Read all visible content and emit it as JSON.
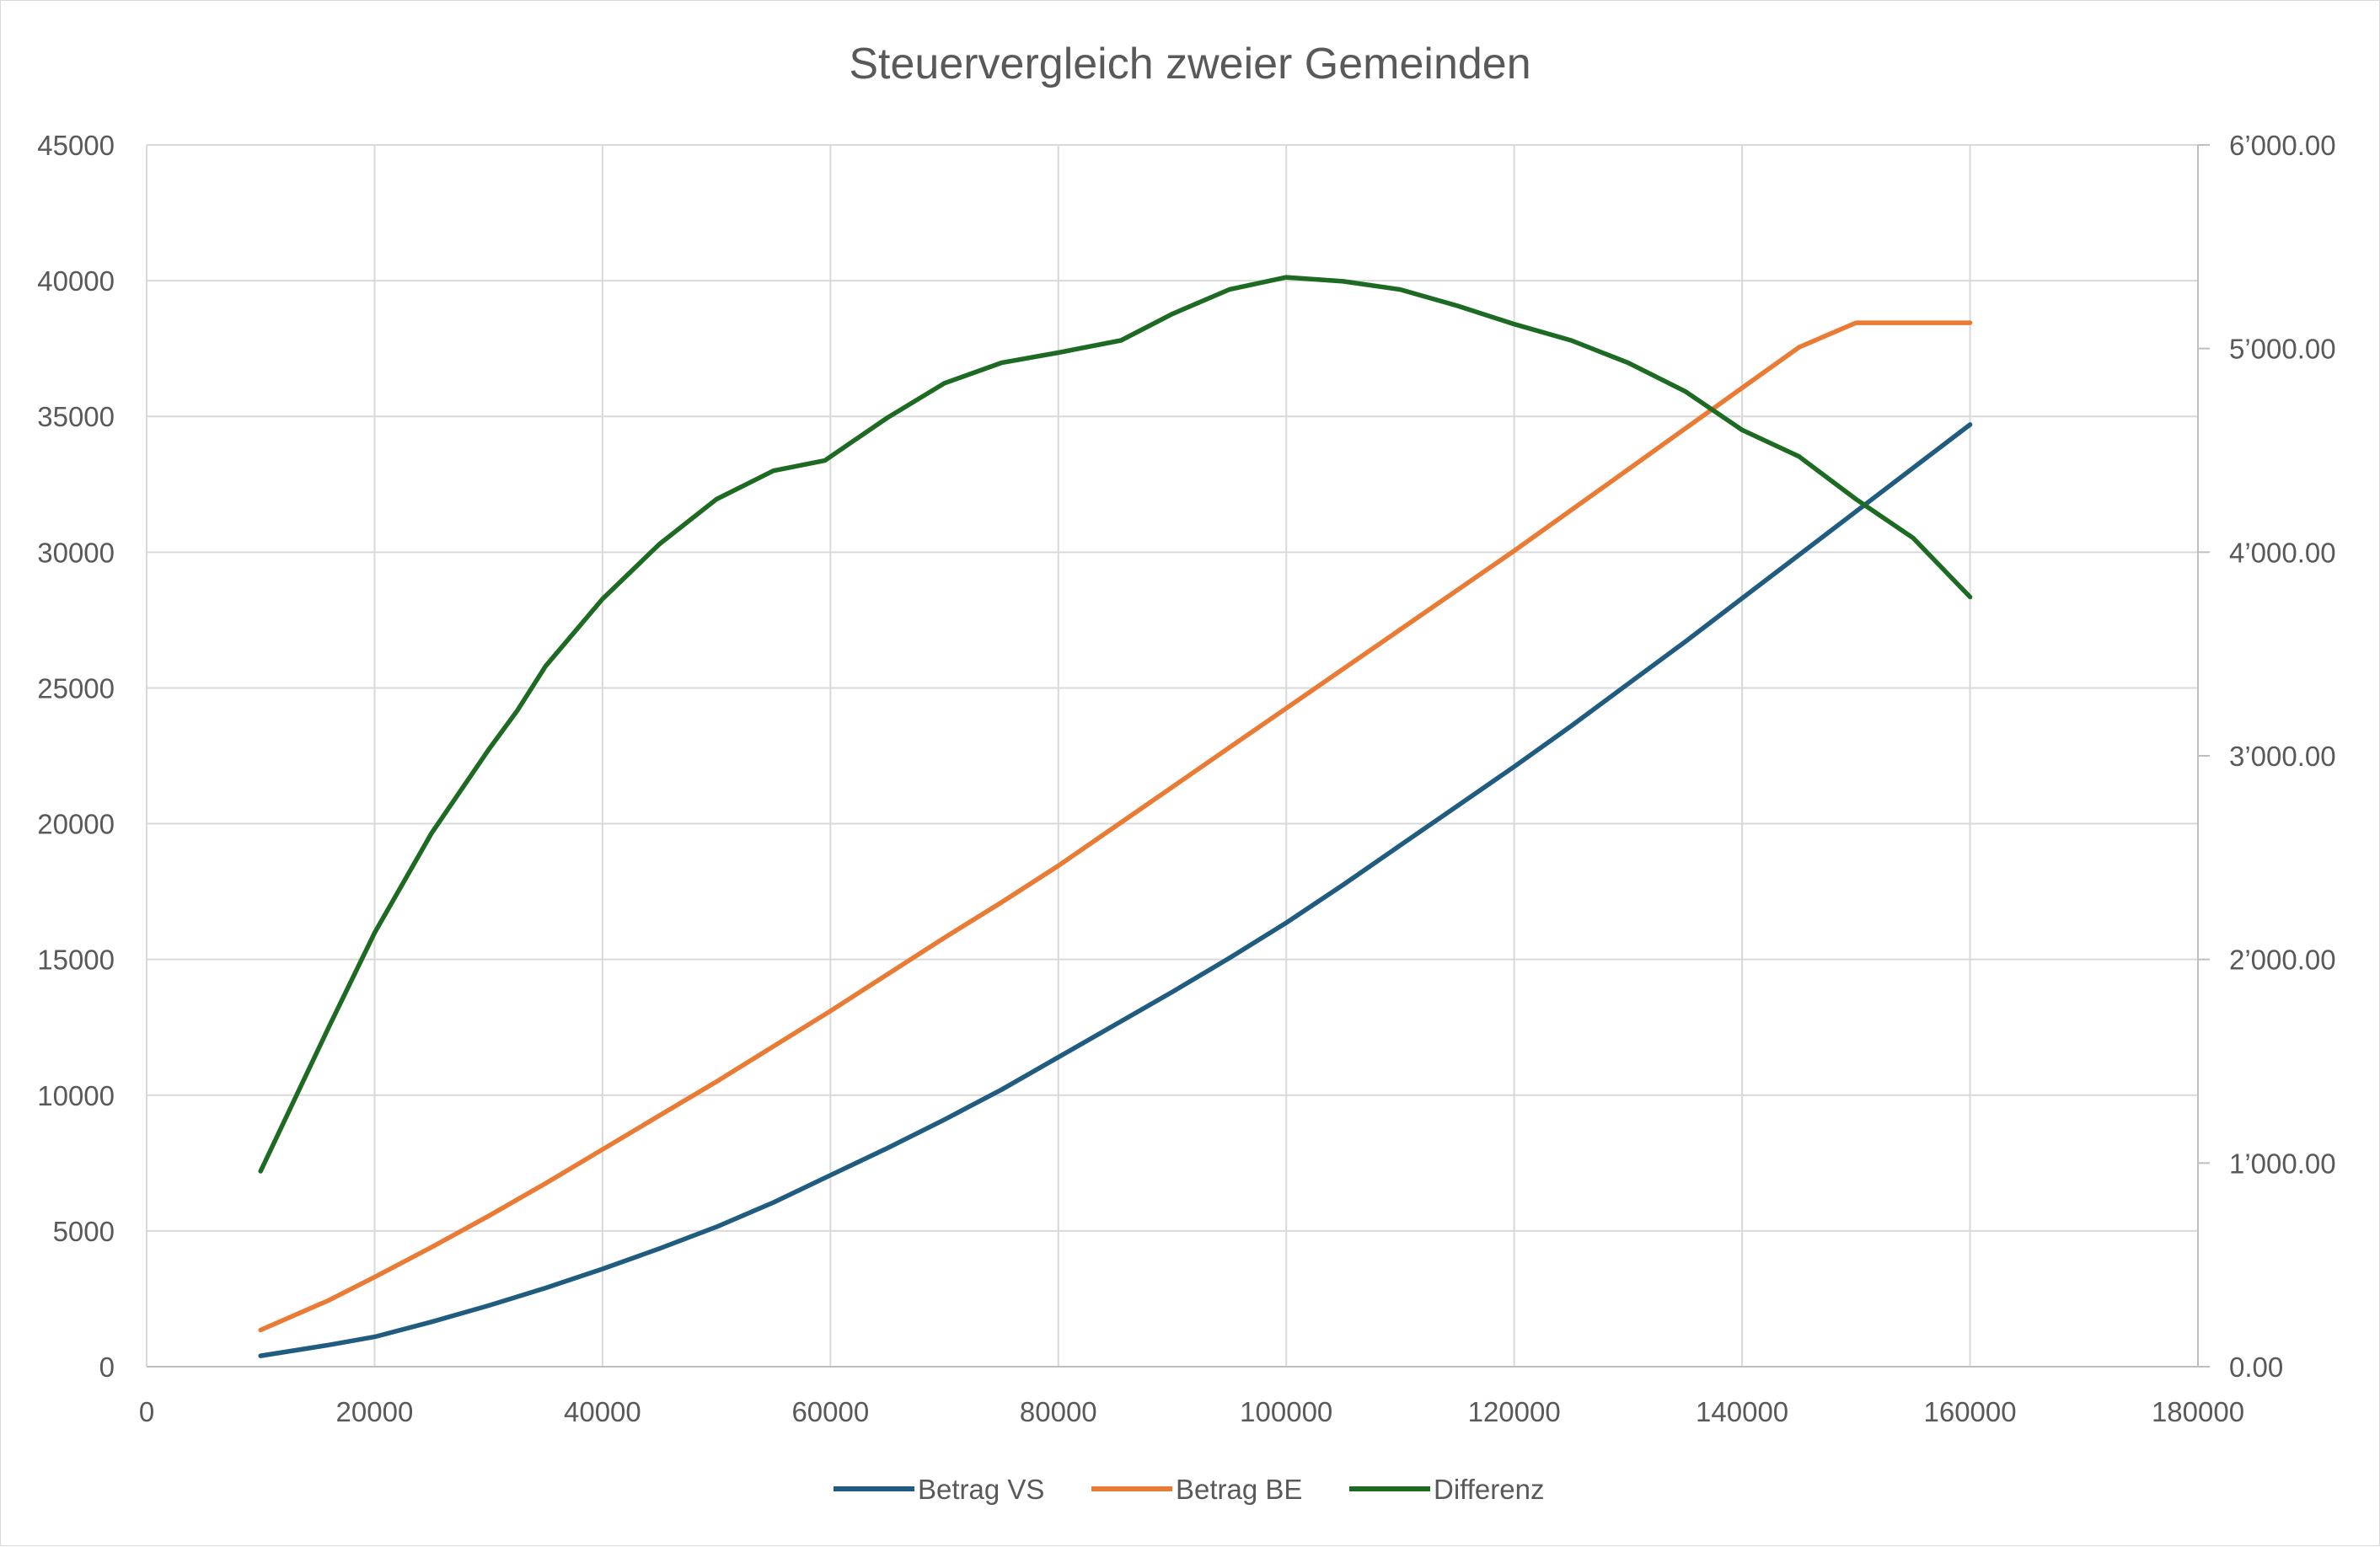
{
  "chart_data": {
    "type": "line",
    "title": "Steuervergleich zweier Gemeinden",
    "xlabel": "",
    "ylabel": "",
    "y2label": "",
    "xlim": [
      0,
      180000
    ],
    "ylim": [
      0,
      45000
    ],
    "y2lim": [
      0,
      6000
    ],
    "x_ticks": [
      "0",
      "20000",
      "40000",
      "60000",
      "80000",
      "100000",
      "120000",
      "140000",
      "160000",
      "180000"
    ],
    "y_ticks": [
      "0",
      "5000",
      "10000",
      "15000",
      "20000",
      "25000",
      "30000",
      "35000",
      "40000",
      "45000"
    ],
    "y2_ticks": [
      "0.00",
      "1’000.00",
      "2’000.00",
      "3’000.00",
      "4’000.00",
      "5’000.00",
      "6’000.00"
    ],
    "grid": true,
    "legend_position": "bottom",
    "series": [
      {
        "name": "Betrag VS",
        "axis": "left",
        "color": "#1f5c80",
        "x": [
          10000,
          16000,
          20000,
          25000,
          30000,
          35000,
          40000,
          45000,
          50000,
          55000,
          60000,
          65000,
          70000,
          75000,
          80000,
          85000,
          90000,
          95000,
          100000,
          105000,
          110000,
          115000,
          120000,
          125000,
          130000,
          135000,
          140000,
          145000,
          150000,
          155000,
          160000
        ],
        "values": [
          400,
          800,
          1100,
          1650,
          2250,
          2900,
          3600,
          4350,
          5150,
          6050,
          7050,
          8050,
          9100,
          10200,
          11400,
          12600,
          13800,
          15050,
          16350,
          17750,
          19200,
          20650,
          22100,
          23600,
          25150,
          26700,
          28300,
          29900,
          31500,
          33100,
          34700
        ]
      },
      {
        "name": "Betrag BE",
        "axis": "left",
        "color": "#e97b34",
        "x": [
          10000,
          16000,
          20000,
          25000,
          30000,
          35000,
          40000,
          45000,
          50000,
          55000,
          60000,
          65000,
          70000,
          75000,
          80000,
          85000,
          90000,
          95000,
          100000,
          105000,
          110000,
          115000,
          120000,
          125000,
          130000,
          135000,
          140000,
          145000,
          150000,
          155000,
          160000
        ],
        "values": [
          1350,
          2450,
          3300,
          4400,
          5550,
          6750,
          8000,
          9250,
          10500,
          11800,
          13100,
          14450,
          15800,
          17100,
          18450,
          19900,
          21350,
          22800,
          24250,
          25700,
          27150,
          28600,
          30050,
          31550,
          33050,
          34550,
          36050,
          37550,
          38450,
          38450,
          38450
        ]
      },
      {
        "name": "Differenz",
        "axis": "right",
        "color": "#1d6a22",
        "x": [
          10000,
          16000,
          20000,
          25000,
          30000,
          32500,
          35000,
          40000,
          45000,
          50000,
          55000,
          59500,
          65000,
          70000,
          75000,
          80000,
          85500,
          90000,
          95000,
          100000,
          105000,
          110000,
          115000,
          120000,
          125000,
          130000,
          135000,
          140000,
          145000,
          150000,
          155000,
          160000
        ],
        "values": [
          960,
          1670,
          2130,
          2620,
          3030,
          3220,
          3440,
          3770,
          4040,
          4260,
          4400,
          4450,
          4660,
          4830,
          4930,
          4980,
          5040,
          5170,
          5290,
          5350,
          5330,
          5290,
          5210,
          5120,
          5040,
          4930,
          4790,
          4600,
          4470,
          4260,
          4070,
          3780
        ]
      }
    ]
  }
}
